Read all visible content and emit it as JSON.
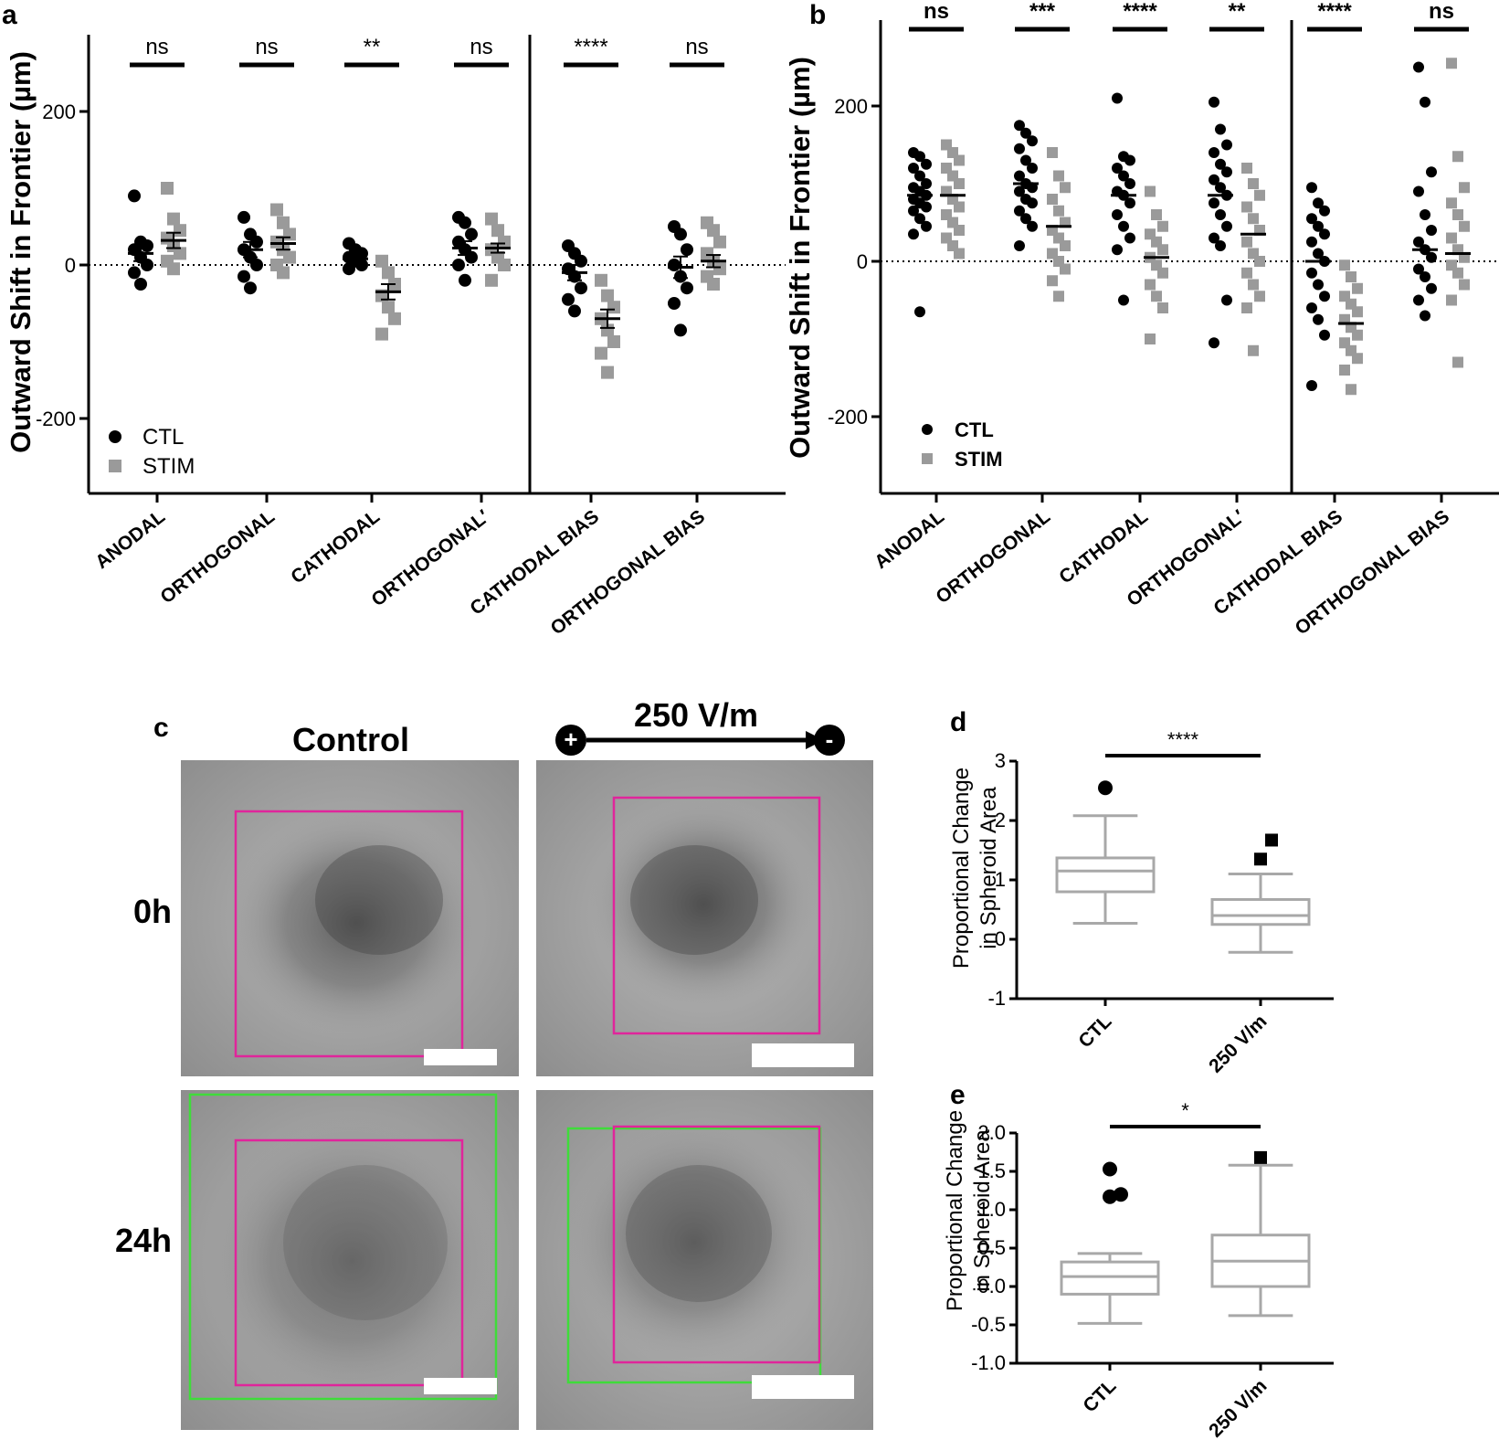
{
  "colors": {
    "ctl": "#000000",
    "stim": "#9a9a9a",
    "box": "#a8a8a8",
    "magenta": "#e0259b",
    "green": "#3fdc3a"
  },
  "chart_data": [
    {
      "panel": "a",
      "type": "scatter",
      "ylabel": "Outward Shift in Frontier (µm)",
      "ylim": [
        -300,
        300
      ],
      "yticks": [
        {
          "v": 200,
          "label": "200"
        },
        {
          "v": 0,
          "label": "0"
        },
        {
          "v": -200,
          "label": "-200"
        }
      ],
      "categories": [
        "ANODAL",
        "ORTHOGONAL",
        "CATHODAL",
        "ORTHOGONAL′",
        "CATHODAL BIAS",
        "ORTHOGONAL BIAS"
      ],
      "significance": [
        "ns",
        "ns",
        "**",
        "ns",
        "****",
        "ns"
      ],
      "legend": [
        "CTL",
        "STIM"
      ],
      "series": [
        {
          "name": "CTL",
          "means": [
            15,
            20,
            8,
            22,
            -10,
            -3
          ],
          "sem": [
            10,
            10,
            8,
            9,
            10,
            14
          ],
          "points": [
            [
              90,
              30,
              25,
              20,
              10,
              0,
              -10,
              -25
            ],
            [
              62,
              40,
              30,
              20,
              10,
              0,
              -15,
              -30
            ],
            [
              28,
              20,
              15,
              10,
              5,
              0,
              -5
            ],
            [
              62,
              55,
              40,
              30,
              20,
              10,
              0,
              -20
            ],
            [
              25,
              15,
              5,
              -5,
              -15,
              -30,
              -45,
              -60
            ],
            [
              50,
              40,
              20,
              0,
              -15,
              -30,
              -50,
              -85
            ]
          ]
        },
        {
          "name": "STIM",
          "means": [
            32,
            28,
            -35,
            22,
            -70,
            5
          ],
          "sem": [
            10,
            8,
            10,
            6,
            12,
            8
          ],
          "points": [
            [
              100,
              60,
              45,
              35,
              25,
              15,
              5,
              -5
            ],
            [
              72,
              55,
              40,
              30,
              20,
              10,
              0,
              -10
            ],
            [
              5,
              -10,
              -25,
              -40,
              -55,
              -70,
              -90
            ],
            [
              60,
              45,
              30,
              20,
              10,
              0,
              -20
            ],
            [
              -20,
              -40,
              -55,
              -70,
              -85,
              -100,
              -115,
              -140
            ],
            [
              55,
              45,
              30,
              15,
              5,
              -5,
              -15,
              -25
            ]
          ]
        }
      ]
    },
    {
      "panel": "b",
      "type": "scatter",
      "ylabel": "Outward Shift in Frontier (µm)",
      "ylim": [
        -300,
        300
      ],
      "yticks": [
        {
          "v": 200,
          "label": "200"
        },
        {
          "v": 0,
          "label": "0"
        },
        {
          "v": -200,
          "label": "-200"
        }
      ],
      "categories": [
        "ANODAL",
        "ORTHOGONAL",
        "CATHODAL",
        "ORTHOGONAL′",
        "CATHODAL BIAS",
        "ORTHOGONAL BIAS"
      ],
      "significance": [
        "ns",
        "***",
        "****",
        "**",
        "****",
        "ns"
      ],
      "legend": [
        "CTL",
        "STIM"
      ],
      "series": [
        {
          "name": "CTL",
          "means": [
            85,
            100,
            85,
            85,
            0,
            15
          ],
          "points": [
            [
              140,
              135,
              125,
              120,
              110,
              100,
              95,
              90,
              85,
              80,
              75,
              70,
              65,
              55,
              45,
              35,
              -65
            ],
            [
              175,
              165,
              155,
              145,
              130,
              120,
              110,
              100,
              95,
              90,
              80,
              75,
              65,
              55,
              45,
              20
            ],
            [
              210,
              135,
              130,
              120,
              110,
              100,
              90,
              85,
              75,
              60,
              45,
              30,
              15,
              -50
            ],
            [
              205,
              170,
              150,
              140,
              125,
              115,
              105,
              95,
              85,
              75,
              60,
              45,
              30,
              20,
              -50,
              -105
            ],
            [
              95,
              75,
              65,
              55,
              45,
              35,
              25,
              10,
              0,
              -15,
              -30,
              -45,
              -60,
              -75,
              -95,
              -160
            ],
            [
              250,
              205,
              115,
              90,
              60,
              40,
              25,
              15,
              5,
              -10,
              -20,
              -35,
              -50,
              -70
            ]
          ]
        },
        {
          "name": "STIM",
          "means": [
            85,
            45,
            5,
            35,
            -80,
            10
          ],
          "points": [
            [
              150,
              140,
              130,
              120,
              110,
              100,
              90,
              80,
              70,
              60,
              50,
              40,
              30,
              20,
              10
            ],
            [
              140,
              110,
              95,
              80,
              65,
              50,
              40,
              30,
              20,
              10,
              0,
              -10,
              -25,
              -45
            ],
            [
              90,
              60,
              45,
              35,
              25,
              15,
              5,
              -5,
              -15,
              -30,
              -45,
              -60,
              -100
            ],
            [
              120,
              100,
              85,
              70,
              55,
              40,
              25,
              10,
              0,
              -15,
              -30,
              -45,
              -60,
              -115
            ],
            [
              -5,
              -20,
              -35,
              -45,
              -55,
              -65,
              -75,
              -85,
              -95,
              -105,
              -115,
              -125,
              -140,
              -165
            ],
            [
              255,
              135,
              95,
              75,
              60,
              45,
              30,
              15,
              5,
              -5,
              -15,
              -30,
              -50,
              -130
            ]
          ]
        }
      ]
    },
    {
      "panel": "d",
      "type": "box",
      "ylabel_line1": "Proportional Change",
      "ylabel_line2": "in Spheroid Area",
      "ylim": [
        -1,
        3
      ],
      "yticks": [
        {
          "v": 3,
          "label": "3"
        },
        {
          "v": 2,
          "label": "2"
        },
        {
          "v": 1,
          "label": "1"
        },
        {
          "v": 0,
          "label": "0"
        },
        {
          "v": -1,
          "label": "-1"
        }
      ],
      "categories": [
        "CTL",
        "250 V/m"
      ],
      "significance": "****",
      "boxes": [
        {
          "name": "CTL",
          "whisker_low": 0.27,
          "q1": 0.8,
          "median": 1.15,
          "q3": 1.37,
          "whisker_high": 2.08,
          "outliers": [
            2.55
          ],
          "marker": "circle"
        },
        {
          "name": "250 V/m",
          "whisker_low": -0.22,
          "q1": 0.25,
          "median": 0.4,
          "q3": 0.67,
          "whisker_high": 1.1,
          "outliers": [
            1.35,
            1.67
          ],
          "marker": "square"
        }
      ]
    },
    {
      "panel": "e",
      "type": "box",
      "ylabel_line1": "Proportional Change",
      "ylabel_line2": "in Spheroid Area",
      "ylim": [
        -1,
        2
      ],
      "yticks": [
        {
          "v": 2.0,
          "label": "2.0"
        },
        {
          "v": 1.5,
          "label": "1.5"
        },
        {
          "v": 1.0,
          "label": "1.0"
        },
        {
          "v": 0.5,
          "label": "0.5"
        },
        {
          "v": 0.0,
          "label": "0.0"
        },
        {
          "v": -0.5,
          "label": "-0.5"
        },
        {
          "v": -1.0,
          "label": "-1.0"
        }
      ],
      "categories": [
        "CTL",
        "250 V/m"
      ],
      "significance": "*",
      "boxes": [
        {
          "name": "CTL",
          "whisker_low": -0.48,
          "q1": -0.1,
          "median": 0.13,
          "q3": 0.32,
          "whisker_high": 0.43,
          "outliers": [
            1.17,
            1.2,
            1.53
          ],
          "marker": "circle"
        },
        {
          "name": "250 V/m",
          "whisker_low": -0.38,
          "q1": 0.0,
          "median": 0.33,
          "q3": 0.67,
          "whisker_high": 1.58,
          "outliers": [
            1.68
          ],
          "marker": "square"
        }
      ]
    }
  ],
  "panel_c": {
    "letter": "c",
    "col_control": "Control",
    "col_field": "250 V/m",
    "plus_sign": "+",
    "minus_sign": "-",
    "row_0h": "0h",
    "row_24h": "24h"
  },
  "panel_letters": {
    "a": "a",
    "b": "b",
    "d": "d",
    "e": "e"
  }
}
